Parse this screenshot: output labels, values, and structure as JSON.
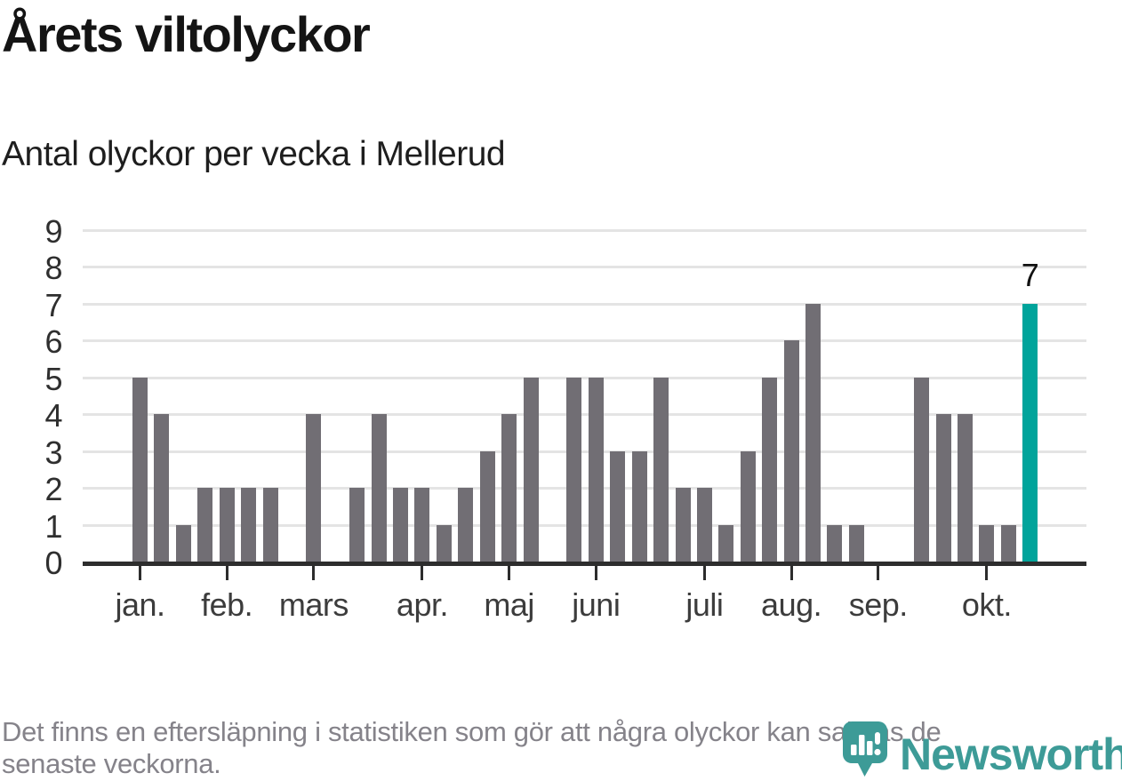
{
  "header": {
    "title": "Årets viltolyckor",
    "subtitle": "Antal olyckor per vecka i Mellerud"
  },
  "chart_data": {
    "type": "bar",
    "title": "Årets viltolyckor",
    "subtitle": "Antal olyckor per vecka i Mellerud",
    "categories_note": "weekly bars from January to October",
    "values": [
      5,
      4,
      1,
      2,
      2,
      2,
      2,
      0,
      4,
      0,
      2,
      4,
      2,
      2,
      1,
      2,
      3,
      4,
      5,
      0,
      5,
      5,
      3,
      3,
      5,
      2,
      2,
      1,
      3,
      5,
      6,
      7,
      1,
      1,
      0,
      0,
      5,
      4,
      4,
      1,
      1,
      7
    ],
    "highlight_index": 41,
    "highlight_value_label": "7",
    "yticks": [
      0,
      1,
      2,
      3,
      4,
      5,
      6,
      7,
      8,
      9
    ],
    "ylim": [
      0,
      9
    ],
    "xticks": [
      {
        "label": "jan.",
        "week_index": 0
      },
      {
        "label": "feb.",
        "week_index": 4
      },
      {
        "label": "mars",
        "week_index": 8
      },
      {
        "label": "apr.",
        "week_index": 13
      },
      {
        "label": "maj",
        "week_index": 17
      },
      {
        "label": "juni",
        "week_index": 21
      },
      {
        "label": "juli",
        "week_index": 26
      },
      {
        "label": "aug.",
        "week_index": 30
      },
      {
        "label": "sep.",
        "week_index": 34
      },
      {
        "label": "okt.",
        "week_index": 39
      }
    ],
    "grid": true,
    "legend": "none",
    "bar_color": "#716e74",
    "highlight_color": "#00a49b"
  },
  "footer": {
    "lines": [
      "Det finns en eftersläpning i statistiken som gör att några olyckor kan saknas de",
      "senaste veckorna."
    ]
  },
  "logo": {
    "wordmark": "Newsworthy",
    "icon": "newsworthy-pin-icon",
    "color": "#3d9b97"
  }
}
